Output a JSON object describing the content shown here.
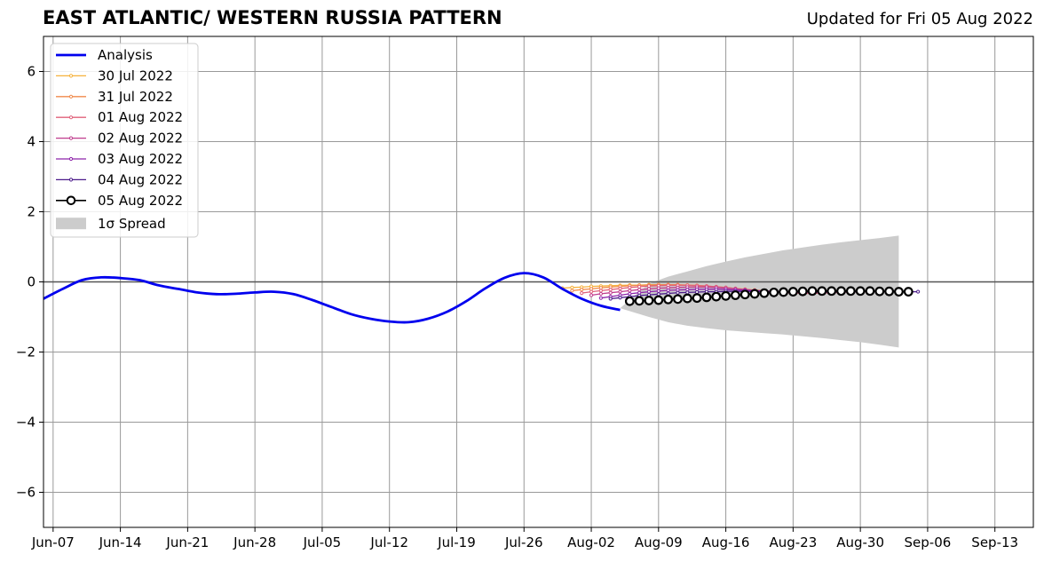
{
  "page": {
    "title": "EAST ATLANTIC/ WESTERN RUSSIA PATTERN",
    "updated": "Updated for Fri 05 Aug 2022"
  },
  "colors": {
    "analysis": "#0000ee",
    "spread": "#cccccc",
    "grid": "#999999",
    "zero_line": "#555555"
  },
  "chart_data": {
    "type": "line",
    "title": "EAST ATLANTIC/ WESTERN RUSSIA PATTERN",
    "xlabel": "",
    "ylabel": "",
    "ylim": [
      -7,
      7
    ],
    "xlim": [
      "2022-06-06",
      "2022-09-17"
    ],
    "grid": true,
    "legend_position": "top-left",
    "x_ticks": [
      "Jun-07",
      "Jun-14",
      "Jun-21",
      "Jun-28",
      "Jul-05",
      "Jul-12",
      "Jul-19",
      "Jul-26",
      "Aug-02",
      "Aug-09",
      "Aug-16",
      "Aug-23",
      "Aug-30",
      "Sep-06",
      "Sep-13"
    ],
    "x_tick_dates": [
      "2022-06-07",
      "2022-06-14",
      "2022-06-21",
      "2022-06-28",
      "2022-07-05",
      "2022-07-12",
      "2022-07-19",
      "2022-07-26",
      "2022-08-02",
      "2022-08-09",
      "2022-08-16",
      "2022-08-23",
      "2022-08-30",
      "2022-09-06",
      "2022-09-13"
    ],
    "y_ticks": [
      -6,
      -4,
      -2,
      0,
      2,
      4,
      6
    ],
    "y_tick_labels": [
      "−6",
      "−4",
      "−2",
      "0",
      "2",
      "4",
      "6"
    ],
    "legend": [
      "Analysis",
      "30 Jul 2022",
      "31 Jul 2022",
      "01 Aug 2022",
      "02 Aug 2022",
      "03 Aug 2022",
      "04 Aug 2022",
      "05 Aug 2022",
      "1σ Spread"
    ],
    "analysis": {
      "name": "Analysis",
      "color": "#0000ee",
      "points": [
        [
          "2022-06-06",
          -0.48
        ],
        [
          "2022-06-08",
          -0.2
        ],
        [
          "2022-06-10",
          0.05
        ],
        [
          "2022-06-12",
          0.13
        ],
        [
          "2022-06-14",
          0.11
        ],
        [
          "2022-06-16",
          0.05
        ],
        [
          "2022-06-18",
          -0.1
        ],
        [
          "2022-06-20",
          -0.2
        ],
        [
          "2022-06-22",
          -0.3
        ],
        [
          "2022-06-24",
          -0.35
        ],
        [
          "2022-06-26",
          -0.34
        ],
        [
          "2022-06-28",
          -0.3
        ],
        [
          "2022-06-30",
          -0.28
        ],
        [
          "2022-07-02",
          -0.35
        ],
        [
          "2022-07-04",
          -0.52
        ],
        [
          "2022-07-06",
          -0.72
        ],
        [
          "2022-07-08",
          -0.92
        ],
        [
          "2022-07-10",
          -1.05
        ],
        [
          "2022-07-12",
          -1.13
        ],
        [
          "2022-07-14",
          -1.15
        ],
        [
          "2022-07-16",
          -1.05
        ],
        [
          "2022-07-18",
          -0.85
        ],
        [
          "2022-07-20",
          -0.55
        ],
        [
          "2022-07-22",
          -0.18
        ],
        [
          "2022-07-24",
          0.12
        ],
        [
          "2022-07-26",
          0.25
        ],
        [
          "2022-07-28",
          0.13
        ],
        [
          "2022-07-30",
          -0.2
        ],
        [
          "2022-08-01",
          -0.48
        ],
        [
          "2022-08-03",
          -0.68
        ],
        [
          "2022-08-05",
          -0.8
        ]
      ]
    },
    "series": [
      {
        "name": "30 Jul 2022",
        "color": "#f6b23c",
        "start": "2022-07-30",
        "values": [
          -0.18,
          -0.16,
          -0.15,
          -0.13,
          -0.12,
          -0.11,
          -0.1,
          -0.09,
          -0.09,
          -0.08,
          -0.08,
          -0.08,
          -0.09,
          -0.1,
          -0.11,
          -0.13,
          -0.15,
          -0.17,
          -0.19,
          -0.21,
          -0.23,
          -0.25,
          -0.27,
          -0.28,
          -0.29,
          -0.3,
          -0.3,
          -0.3,
          -0.29,
          -0.28,
          -0.28,
          -0.28,
          -0.29
        ]
      },
      {
        "name": "31 Jul 2022",
        "color": "#f08a4b",
        "start": "2022-07-31",
        "values": [
          -0.25,
          -0.22,
          -0.2,
          -0.17,
          -0.15,
          -0.13,
          -0.11,
          -0.1,
          -0.09,
          -0.08,
          -0.08,
          -0.08,
          -0.09,
          -0.1,
          -0.12,
          -0.14,
          -0.16,
          -0.19,
          -0.21,
          -0.24,
          -0.26,
          -0.28,
          -0.29,
          -0.3,
          -0.31,
          -0.31,
          -0.3,
          -0.3,
          -0.29,
          -0.28,
          -0.27,
          -0.27,
          -0.28
        ]
      },
      {
        "name": "01 Aug 2022",
        "color": "#e0607a",
        "start": "2022-08-01",
        "values": [
          -0.32,
          -0.28,
          -0.25,
          -0.22,
          -0.19,
          -0.16,
          -0.14,
          -0.12,
          -0.11,
          -0.1,
          -0.1,
          -0.1,
          -0.11,
          -0.12,
          -0.14,
          -0.16,
          -0.19,
          -0.22,
          -0.24,
          -0.27,
          -0.29,
          -0.31,
          -0.32,
          -0.33,
          -0.33,
          -0.32,
          -0.31,
          -0.3,
          -0.29,
          -0.28,
          -0.27,
          -0.28,
          -0.28
        ]
      },
      {
        "name": "02 Aug 2022",
        "color": "#c03d8e",
        "start": "2022-08-02",
        "values": [
          -0.38,
          -0.34,
          -0.31,
          -0.28,
          -0.25,
          -0.22,
          -0.2,
          -0.18,
          -0.17,
          -0.16,
          -0.15,
          -0.15,
          -0.15,
          -0.16,
          -0.18,
          -0.2,
          -0.22,
          -0.24,
          -0.26,
          -0.28,
          -0.29,
          -0.3,
          -0.3,
          -0.3,
          -0.3,
          -0.29,
          -0.28,
          -0.28,
          -0.28,
          -0.27,
          -0.27,
          -0.28,
          -0.28
        ]
      },
      {
        "name": "03 Aug 2022",
        "color": "#8e24aa",
        "start": "2022-08-03",
        "values": [
          -0.46,
          -0.42,
          -0.38,
          -0.34,
          -0.31,
          -0.28,
          -0.26,
          -0.24,
          -0.23,
          -0.22,
          -0.21,
          -0.21,
          -0.21,
          -0.22,
          -0.23,
          -0.24,
          -0.25,
          -0.26,
          -0.27,
          -0.28,
          -0.28,
          -0.28,
          -0.28,
          -0.28,
          -0.27,
          -0.27,
          -0.27,
          -0.27,
          -0.27,
          -0.27,
          -0.27,
          -0.28,
          -0.28
        ]
      },
      {
        "name": "04 Aug 2022",
        "color": "#4b1a8a",
        "start": "2022-08-04",
        "values": [
          -0.48,
          -0.45,
          -0.42,
          -0.39,
          -0.37,
          -0.35,
          -0.33,
          -0.31,
          -0.3,
          -0.29,
          -0.28,
          -0.28,
          -0.27,
          -0.27,
          -0.27,
          -0.27,
          -0.27,
          -0.27,
          -0.28,
          -0.28,
          -0.28,
          -0.28,
          -0.28,
          -0.28,
          -0.28,
          -0.28,
          -0.28,
          -0.28,
          -0.28,
          -0.28,
          -0.28,
          -0.28,
          -0.28
        ]
      },
      {
        "name": "05 Aug 2022",
        "color": "#000000",
        "start": "2022-08-06",
        "values": [
          -0.55,
          -0.54,
          -0.53,
          -0.52,
          -0.5,
          -0.49,
          -0.47,
          -0.46,
          -0.44,
          -0.42,
          -0.4,
          -0.38,
          -0.36,
          -0.34,
          -0.32,
          -0.3,
          -0.29,
          -0.28,
          -0.27,
          -0.26,
          -0.26,
          -0.26,
          -0.26,
          -0.26,
          -0.26,
          -0.26,
          -0.27,
          -0.27,
          -0.28,
          -0.28
        ]
      }
    ],
    "spread": {
      "name": "1σ Spread",
      "color": "#cccccc",
      "points": [
        [
          "2022-08-05",
          -0.75,
          -0.75
        ],
        [
          "2022-08-08",
          -0.05,
          -1.0
        ],
        [
          "2022-08-10",
          0.15,
          -1.15
        ],
        [
          "2022-08-12",
          0.3,
          -1.25
        ],
        [
          "2022-08-14",
          0.45,
          -1.32
        ],
        [
          "2022-08-16",
          0.58,
          -1.38
        ],
        [
          "2022-08-18",
          0.7,
          -1.42
        ],
        [
          "2022-08-20",
          0.8,
          -1.46
        ],
        [
          "2022-08-22",
          0.9,
          -1.5
        ],
        [
          "2022-08-24",
          0.98,
          -1.55
        ],
        [
          "2022-08-26",
          1.06,
          -1.6
        ],
        [
          "2022-08-28",
          1.13,
          -1.66
        ],
        [
          "2022-08-30",
          1.19,
          -1.72
        ],
        [
          "2022-09-01",
          1.25,
          -1.79
        ],
        [
          "2022-09-03",
          1.32,
          -1.87
        ]
      ]
    }
  }
}
